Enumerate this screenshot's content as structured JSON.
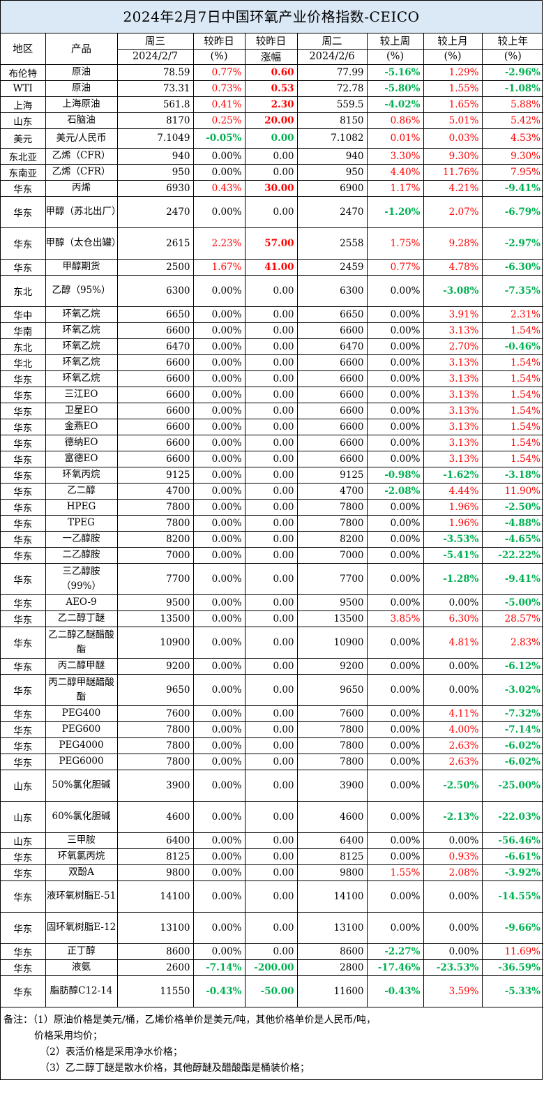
{
  "title": "2024年2月7日中国环氧产业价格指数-CEICO",
  "header": {
    "region": "地区",
    "product": "产品",
    "wed_day": "周三",
    "wed_date": "2024/2/7",
    "chg_pct_label": "较昨日",
    "chg_pct_unit": "(%)",
    "chg_amt_label": "较昨日",
    "chg_amt_unit": "涨幅",
    "tue_day": "周二",
    "tue_date": "2024/2/6",
    "week_label": "较上周",
    "week_unit": "(%)",
    "month_label": "较上月",
    "month_unit": "(%)",
    "year_label": "较上年",
    "year_unit": "(%)"
  },
  "colors": {
    "up": "#ff0000",
    "down": "#00b050",
    "flat": "#000000",
    "title_bg": "#dbe9f6"
  },
  "rows": [
    {
      "region": "布伦特",
      "product": "原油",
      "h": 23,
      "wed": "78.59",
      "pct": "0.77%",
      "pc": "red",
      "amt": "0.60",
      "ac": "bred",
      "tue": "77.99",
      "week": "-5.16%",
      "wc": "green",
      "month": "1.29%",
      "mc": "red",
      "year": "-2.96%",
      "yc": "green"
    },
    {
      "region": "WTI",
      "product": "原油",
      "h": 23,
      "wed": "73.31",
      "pct": "0.73%",
      "pc": "red",
      "amt": "0.53",
      "ac": "bred",
      "tue": "72.78",
      "week": "-5.80%",
      "wc": "green",
      "month": "1.55%",
      "mc": "red",
      "year": "-1.08%",
      "yc": "green"
    },
    {
      "region": "上海",
      "product": "上海原油",
      "h": 23,
      "wed": "561.8",
      "pct": "0.41%",
      "pc": "red",
      "amt": "2.30",
      "ac": "bred",
      "tue": "559.5",
      "week": "-4.02%",
      "wc": "green",
      "month": "1.65%",
      "mc": "red",
      "year": "5.88%",
      "yc": "red"
    },
    {
      "region": "山东",
      "product": "石脑油",
      "h": 23,
      "wed": "8170",
      "pct": "0.25%",
      "pc": "red",
      "amt": "20.00",
      "ac": "bred",
      "tue": "8150",
      "week": "0.86%",
      "wc": "red",
      "month": "5.01%",
      "mc": "red",
      "year": "5.42%",
      "yc": "red"
    },
    {
      "region": "美元",
      "product": "美元/人民币",
      "h": 28,
      "wed": "7.1049",
      "pct": "-0.05%",
      "pc": "green",
      "amt": "0.00",
      "ac": "green",
      "tue": "7.1082",
      "week": "0.01%",
      "wc": "red",
      "month": "0.03%",
      "mc": "red",
      "year": "4.53%",
      "yc": "red"
    },
    {
      "region": "东北亚",
      "product": "乙烯（CFR）",
      "h": 23,
      "wed": "940",
      "pct": "0.00%",
      "pc": "",
      "amt": "0.00",
      "ac": "",
      "tue": "940",
      "week": "3.30%",
      "wc": "red",
      "month": "9.30%",
      "mc": "red",
      "year": "9.30%",
      "yc": "red"
    },
    {
      "region": "东南亚",
      "product": "乙烯（CFR）",
      "h": 23,
      "wed": "950",
      "pct": "0.00%",
      "pc": "",
      "amt": "0.00",
      "ac": "",
      "tue": "950",
      "week": "4.40%",
      "wc": "red",
      "month": "11.76%",
      "mc": "red",
      "year": "7.95%",
      "yc": "red"
    },
    {
      "region": "华东",
      "product": "丙烯",
      "h": 23,
      "wed": "6930",
      "pct": "0.43%",
      "pc": "red",
      "amt": "30.00",
      "ac": "bred",
      "tue": "6900",
      "week": "1.17%",
      "wc": "red",
      "month": "4.21%",
      "mc": "red",
      "year": "-9.41%",
      "yc": "green"
    },
    {
      "region": "华东",
      "product": "甲醇（苏北出厂）",
      "h": 45,
      "wed": "2470",
      "pct": "0.00%",
      "pc": "",
      "amt": "0.00",
      "ac": "",
      "tue": "2470",
      "week": "-1.20%",
      "wc": "green",
      "month": "2.07%",
      "mc": "red",
      "year": "-6.79%",
      "yc": "green"
    },
    {
      "region": "华东",
      "product": "甲醇（太仓出罐）",
      "h": 45,
      "wed": "2615",
      "pct": "2.23%",
      "pc": "red",
      "amt": "57.00",
      "ac": "bred",
      "tue": "2558",
      "week": "1.75%",
      "wc": "red",
      "month": "9.28%",
      "mc": "red",
      "year": "-2.97%",
      "yc": "green"
    },
    {
      "region": "华东",
      "product": "甲醇期货",
      "h": 23,
      "wed": "2500",
      "pct": "1.67%",
      "pc": "red",
      "amt": "41.00",
      "ac": "bred",
      "tue": "2459",
      "week": "0.77%",
      "wc": "red",
      "month": "4.78%",
      "mc": "red",
      "year": "-6.30%",
      "yc": "green"
    },
    {
      "region": "东北",
      "product": "乙醇（95%）",
      "h": 45,
      "wed": "6300",
      "pct": "0.00%",
      "pc": "",
      "amt": "0.00",
      "ac": "",
      "tue": "6300",
      "week": "0.00%",
      "wc": "",
      "month": "-3.08%",
      "mc": "green",
      "year": "-7.35%",
      "yc": "green"
    },
    {
      "region": "华中",
      "product": "环氧乙烷",
      "h": 23,
      "wed": "6650",
      "pct": "0.00%",
      "pc": "",
      "amt": "0.00",
      "ac": "",
      "tue": "6650",
      "week": "0.00%",
      "wc": "",
      "month": "3.91%",
      "mc": "red",
      "year": "2.31%",
      "yc": "red"
    },
    {
      "region": "华南",
      "product": "环氧乙烷",
      "h": 23,
      "wed": "6600",
      "pct": "0.00%",
      "pc": "",
      "amt": "0.00",
      "ac": "",
      "tue": "6600",
      "week": "0.00%",
      "wc": "",
      "month": "3.13%",
      "mc": "red",
      "year": "1.54%",
      "yc": "red"
    },
    {
      "region": "东北",
      "product": "环氧乙烷",
      "h": 23,
      "wed": "6470",
      "pct": "0.00%",
      "pc": "",
      "amt": "0.00",
      "ac": "",
      "tue": "6470",
      "week": "0.00%",
      "wc": "",
      "month": "2.70%",
      "mc": "red",
      "year": "-0.46%",
      "yc": "green"
    },
    {
      "region": "华北",
      "product": "环氧乙烷",
      "h": 23,
      "wed": "6600",
      "pct": "0.00%",
      "pc": "",
      "amt": "0.00",
      "ac": "",
      "tue": "6600",
      "week": "0.00%",
      "wc": "",
      "month": "3.13%",
      "mc": "red",
      "year": "1.54%",
      "yc": "red"
    },
    {
      "region": "华东",
      "product": "环氧乙烷",
      "h": 23,
      "wed": "6600",
      "pct": "0.00%",
      "pc": "",
      "amt": "0.00",
      "ac": "",
      "tue": "6600",
      "week": "0.00%",
      "wc": "",
      "month": "3.13%",
      "mc": "red",
      "year": "1.54%",
      "yc": "red"
    },
    {
      "region": "华东",
      "product": "三江EO",
      "h": 23,
      "wed": "6600",
      "pct": "0.00%",
      "pc": "",
      "amt": "0.00",
      "ac": "",
      "tue": "6600",
      "week": "0.00%",
      "wc": "",
      "month": "3.13%",
      "mc": "red",
      "year": "1.54%",
      "yc": "red"
    },
    {
      "region": "华东",
      "product": "卫星EO",
      "h": 23,
      "wed": "6600",
      "pct": "0.00%",
      "pc": "",
      "amt": "0.00",
      "ac": "",
      "tue": "6600",
      "week": "0.00%",
      "wc": "",
      "month": "3.13%",
      "mc": "red",
      "year": "1.54%",
      "yc": "red"
    },
    {
      "region": "华东",
      "product": "金燕EO",
      "h": 23,
      "wed": "6600",
      "pct": "0.00%",
      "pc": "",
      "amt": "0.00",
      "ac": "",
      "tue": "6600",
      "week": "0.00%",
      "wc": "",
      "month": "3.13%",
      "mc": "red",
      "year": "1.54%",
      "yc": "red"
    },
    {
      "region": "华东",
      "product": "德纳EO",
      "h": 23,
      "wed": "6600",
      "pct": "0.00%",
      "pc": "",
      "amt": "0.00",
      "ac": "",
      "tue": "6600",
      "week": "0.00%",
      "wc": "",
      "month": "3.13%",
      "mc": "red",
      "year": "1.54%",
      "yc": "red"
    },
    {
      "region": "华东",
      "product": "富德EO",
      "h": 23,
      "wed": "6600",
      "pct": "0.00%",
      "pc": "",
      "amt": "0.00",
      "ac": "",
      "tue": "6600",
      "week": "0.00%",
      "wc": "",
      "month": "3.13%",
      "mc": "red",
      "year": "1.54%",
      "yc": "red"
    },
    {
      "region": "华东",
      "product": "环氧丙烷",
      "h": 23,
      "wed": "9125",
      "pct": "0.00%",
      "pc": "",
      "amt": "0.00",
      "ac": "",
      "tue": "9125",
      "week": "-0.98%",
      "wc": "green",
      "month": "-1.62%",
      "mc": "green",
      "year": "-3.18%",
      "yc": "green"
    },
    {
      "region": "华东",
      "product": "乙二醇",
      "h": 23,
      "wed": "4700",
      "pct": "0.00%",
      "pc": "",
      "amt": "0.00",
      "ac": "",
      "tue": "4700",
      "week": "-2.08%",
      "wc": "green",
      "month": "4.44%",
      "mc": "red",
      "year": "11.90%",
      "yc": "red"
    },
    {
      "region": "华东",
      "product": "HPEG",
      "h": 23,
      "wed": "7800",
      "pct": "0.00%",
      "pc": "",
      "amt": "0.00",
      "ac": "",
      "tue": "7800",
      "week": "0.00%",
      "wc": "",
      "month": "1.96%",
      "mc": "red",
      "year": "-2.50%",
      "yc": "green"
    },
    {
      "region": "华东",
      "product": "TPEG",
      "h": 23,
      "wed": "7800",
      "pct": "0.00%",
      "pc": "",
      "amt": "0.00",
      "ac": "",
      "tue": "7800",
      "week": "0.00%",
      "wc": "",
      "month": "1.96%",
      "mc": "red",
      "year": "-4.88%",
      "yc": "green"
    },
    {
      "region": "华东",
      "product": "一乙醇胺",
      "h": 23,
      "wed": "8200",
      "pct": "0.00%",
      "pc": "",
      "amt": "0.00",
      "ac": "",
      "tue": "8200",
      "week": "0.00%",
      "wc": "",
      "month": "-3.53%",
      "mc": "green",
      "year": "-4.65%",
      "yc": "green"
    },
    {
      "region": "华东",
      "product": "二乙醇胺",
      "h": 23,
      "wed": "7000",
      "pct": "0.00%",
      "pc": "",
      "amt": "0.00",
      "ac": "",
      "tue": "7000",
      "week": "0.00%",
      "wc": "",
      "month": "-5.41%",
      "mc": "green",
      "year": "-22.22%",
      "yc": "green"
    },
    {
      "region": "华东",
      "product": "三乙醇胺（99%）",
      "h": 45,
      "wed": "7700",
      "pct": "0.00%",
      "pc": "",
      "amt": "0.00",
      "ac": "",
      "tue": "7700",
      "week": "0.00%",
      "wc": "",
      "month": "-1.28%",
      "mc": "green",
      "year": "-9.41%",
      "yc": "green"
    },
    {
      "region": "华东",
      "product": "AEO-9",
      "h": 23,
      "wed": "9500",
      "pct": "0.00%",
      "pc": "",
      "amt": "0.00",
      "ac": "",
      "tue": "9500",
      "week": "0.00%",
      "wc": "",
      "month": "0.00%",
      "mc": "",
      "year": "-5.00%",
      "yc": "green"
    },
    {
      "region": "华东",
      "product": "乙二醇丁醚",
      "h": 23,
      "wed": "13500",
      "pct": "0.00%",
      "pc": "",
      "amt": "0.00",
      "ac": "",
      "tue": "13500",
      "week": "3.85%",
      "wc": "red",
      "month": "6.30%",
      "mc": "red",
      "year": "28.57%",
      "yc": "red"
    },
    {
      "region": "华东",
      "product": "乙二醇乙醚醋酸酯",
      "h": 45,
      "wed": "10900",
      "pct": "0.00%",
      "pc": "",
      "amt": "0.00",
      "ac": "",
      "tue": "10900",
      "week": "0.00%",
      "wc": "",
      "month": "4.81%",
      "mc": "red",
      "year": "2.83%",
      "yc": "red"
    },
    {
      "region": "华东",
      "product": "丙二醇甲醚",
      "h": 23,
      "wed": "9200",
      "pct": "0.00%",
      "pc": "",
      "amt": "0.00",
      "ac": "",
      "tue": "9200",
      "week": "0.00%",
      "wc": "",
      "month": "0.00%",
      "mc": "",
      "year": "-6.12%",
      "yc": "green"
    },
    {
      "region": "华东",
      "product": "丙二醇甲醚醋酸酯",
      "h": 45,
      "wed": "9650",
      "pct": "0.00%",
      "pc": "",
      "amt": "0.00",
      "ac": "",
      "tue": "9650",
      "week": "0.00%",
      "wc": "",
      "month": "0.00%",
      "mc": "",
      "year": "-3.02%",
      "yc": "green"
    },
    {
      "region": "华东",
      "product": "PEG400",
      "h": 23,
      "wed": "7600",
      "pct": "0.00%",
      "pc": "",
      "amt": "0.00",
      "ac": "",
      "tue": "7600",
      "week": "0.00%",
      "wc": "",
      "month": "4.11%",
      "mc": "red",
      "year": "-7.32%",
      "yc": "green"
    },
    {
      "region": "华东",
      "product": "PEG600",
      "h": 23,
      "wed": "7800",
      "pct": "0.00%",
      "pc": "",
      "amt": "0.00",
      "ac": "",
      "tue": "7800",
      "week": "0.00%",
      "wc": "",
      "month": "4.00%",
      "mc": "red",
      "year": "-7.14%",
      "yc": "green"
    },
    {
      "region": "华东",
      "product": "PEG4000",
      "h": 23,
      "wed": "7800",
      "pct": "0.00%",
      "pc": "",
      "amt": "0.00",
      "ac": "",
      "tue": "7800",
      "week": "0.00%",
      "wc": "",
      "month": "2.63%",
      "mc": "red",
      "year": "-6.02%",
      "yc": "green"
    },
    {
      "region": "华东",
      "product": "PEG6000",
      "h": 23,
      "wed": "7800",
      "pct": "0.00%",
      "pc": "",
      "amt": "0.00",
      "ac": "",
      "tue": "7800",
      "week": "0.00%",
      "wc": "",
      "month": "2.63%",
      "mc": "red",
      "year": "-6.02%",
      "yc": "green"
    },
    {
      "region": "山东",
      "product": "50%氯化胆碱",
      "h": 45,
      "wed": "3900",
      "pct": "0.00%",
      "pc": "",
      "amt": "0.00",
      "ac": "",
      "tue": "3900",
      "week": "0.00%",
      "wc": "",
      "month": "-2.50%",
      "mc": "green",
      "year": "-25.00%",
      "yc": "green"
    },
    {
      "region": "山东",
      "product": "60%氯化胆碱",
      "h": 45,
      "wed": "4600",
      "pct": "0.00%",
      "pc": "",
      "amt": "0.00",
      "ac": "",
      "tue": "4600",
      "week": "0.00%",
      "wc": "",
      "month": "-2.13%",
      "mc": "green",
      "year": "-22.03%",
      "yc": "green"
    },
    {
      "region": "山东",
      "product": "三甲胺",
      "h": 23,
      "wed": "6400",
      "pct": "0.00%",
      "pc": "",
      "amt": "0.00",
      "ac": "",
      "tue": "6400",
      "week": "0.00%",
      "wc": "",
      "month": "0.00%",
      "mc": "",
      "year": "-56.46%",
      "yc": "green"
    },
    {
      "region": "华东",
      "product": "环氧氯丙烷",
      "h": 23,
      "wed": "8125",
      "pct": "0.00%",
      "pc": "",
      "amt": "0.00",
      "ac": "",
      "tue": "8125",
      "week": "0.00%",
      "wc": "",
      "month": "0.93%",
      "mc": "red",
      "year": "-6.61%",
      "yc": "green"
    },
    {
      "region": "华东",
      "product": "双酚A",
      "h": 23,
      "wed": "9800",
      "pct": "0.00%",
      "pc": "",
      "amt": "0.00",
      "ac": "",
      "tue": "9800",
      "week": "1.55%",
      "wc": "red",
      "month": "2.08%",
      "mc": "red",
      "year": "-3.92%",
      "yc": "green"
    },
    {
      "region": "华东",
      "product": "液环氧树脂E-51",
      "h": 45,
      "wed": "14100",
      "pct": "0.00%",
      "pc": "",
      "amt": "0.00",
      "ac": "",
      "tue": "14100",
      "week": "0.00%",
      "wc": "",
      "month": "0.00%",
      "mc": "",
      "year": "-14.55%",
      "yc": "green"
    },
    {
      "region": "华东",
      "product": "固环氧树脂E-12",
      "h": 45,
      "wed": "13100",
      "pct": "0.00%",
      "pc": "",
      "amt": "0.00",
      "ac": "",
      "tue": "13100",
      "week": "0.00%",
      "wc": "",
      "month": "0.00%",
      "mc": "",
      "year": "-9.66%",
      "yc": "green"
    },
    {
      "region": "华东",
      "product": "正丁醇",
      "h": 23,
      "wed": "8600",
      "pct": "0.00%",
      "pc": "",
      "amt": "0.00",
      "ac": "",
      "tue": "8600",
      "week": "-2.27%",
      "wc": "green",
      "month": "0.00%",
      "mc": "",
      "year": "11.69%",
      "yc": "red"
    },
    {
      "region": "华东",
      "product": "液氨",
      "h": 23,
      "wed": "2600",
      "pct": "-7.14%",
      "pc": "green",
      "amt": "-200.00",
      "ac": "green",
      "tue": "2800",
      "week": "-17.46%",
      "wc": "green",
      "month": "-23.53%",
      "mc": "green",
      "year": "-36.59%",
      "yc": "green"
    },
    {
      "region": "华东",
      "product": "脂肪醇C12-14",
      "h": 45,
      "wed": "11550",
      "pct": "-0.43%",
      "pc": "green",
      "amt": "-50.00",
      "ac": "green",
      "tue": "11600",
      "week": "-0.43%",
      "wc": "green",
      "month": "3.59%",
      "mc": "red",
      "year": "-5.33%",
      "yc": "green"
    }
  ],
  "notes": {
    "line1": "备注：（1）原油价格是美元/桶，乙烯价格单价是美元/吨，其他价格单价是人民币/吨，",
    "line2": "价格采用均价；",
    "line3": "（2）表活价格是采用净水价格；",
    "line4": "（3）乙二醇丁醚是散水价格，其他醇醚及醋酸酯是桶装价格；"
  }
}
